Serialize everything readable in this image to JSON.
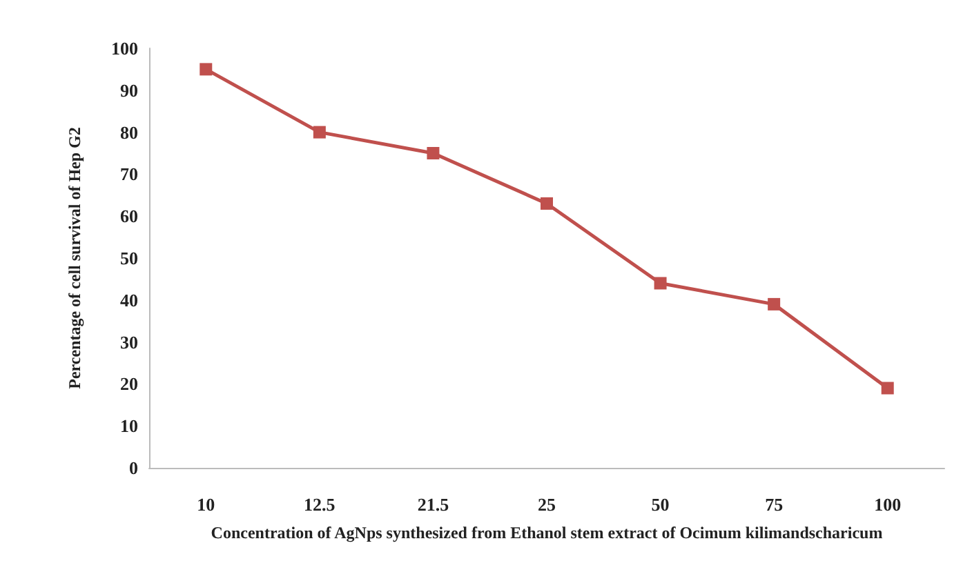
{
  "chart_data": {
    "type": "line",
    "categories": [
      "10",
      "12.5",
      "21.5",
      "25",
      "50",
      "75",
      "100"
    ],
    "series": [
      {
        "color": "#c0504d",
        "values": [
          95,
          80,
          75,
          63,
          44,
          39,
          19
        ]
      }
    ],
    "xlabel": "Concentration of AgNps synthesized from Ethanol stem extract of Ocimum kilimandscharicum",
    "ylabel": "Percentage of cell survival of Hep G2",
    "ylim": [
      0,
      100
    ],
    "yticks": [
      0,
      10,
      20,
      30,
      40,
      50,
      60,
      70,
      80,
      90,
      100
    ],
    "marker": "square",
    "line_style": "solid"
  }
}
